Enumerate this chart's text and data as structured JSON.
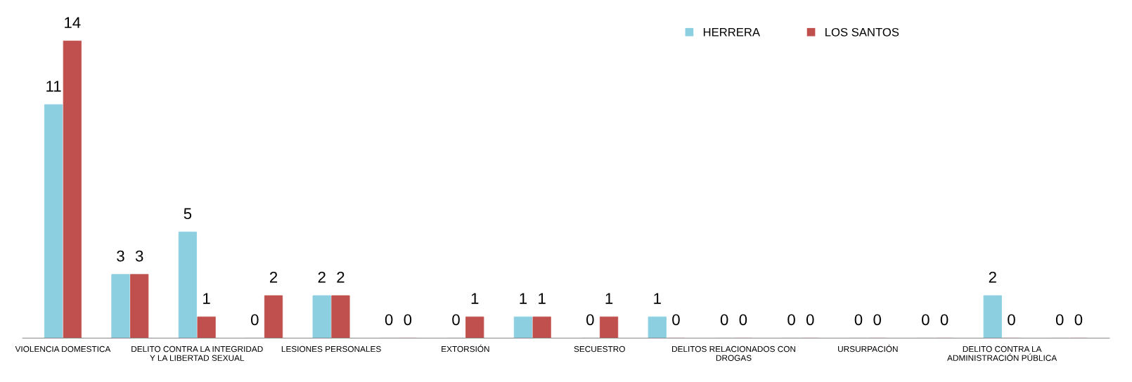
{
  "chart_data": {
    "type": "bar",
    "categories": [
      "VIOLENCIA DOMESTICA",
      null,
      "DELITO CONTRA LA INTEGRIDAD\nY LA LIBERTAD SEXUAL",
      null,
      "LESIONES PERSONALES",
      null,
      "EXTORSIÓN",
      null,
      "SECUESTRO",
      null,
      "DELITOS RELACIONADOS CON\nDROGAS",
      null,
      "URSURPACIÓN",
      null,
      "DELITO CONTRA LA\nADMINISTRACIÓN PÚBLICA",
      null
    ],
    "series": [
      {
        "name": "HERRERA",
        "color": "#8ccfe0",
        "values": [
          11,
          3,
          5,
          0,
          2,
          0,
          0,
          1,
          0,
          1,
          0,
          0,
          0,
          0,
          2,
          0
        ]
      },
      {
        "name": "LOS SANTOS",
        "color": "#c0504d",
        "values": [
          14,
          3,
          1,
          2,
          2,
          0,
          1,
          1,
          1,
          0,
          0,
          0,
          0,
          0,
          0,
          0
        ]
      }
    ],
    "data_labels": true,
    "legend": "top right",
    "grid": false
  }
}
